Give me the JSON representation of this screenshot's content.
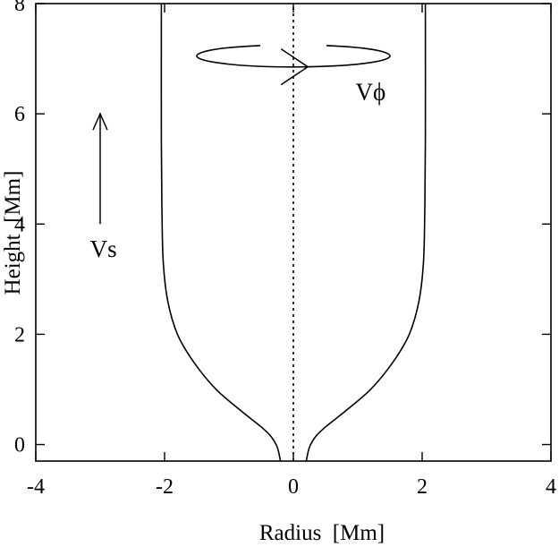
{
  "chart_data": {
    "type": "line",
    "xlabel": "Radius  [Mm]",
    "ylabel": "Height  [Mm]",
    "xlim": [
      -4,
      4
    ],
    "ylim": [
      -0.3,
      8
    ],
    "x_ticks": [
      "-4",
      "-2",
      "0",
      "2",
      "4"
    ],
    "y_ticks": [
      "0",
      "2",
      "4",
      "6",
      "8"
    ],
    "series": [
      {
        "style": "solid",
        "x": [
          0.2,
          0.25,
          0.35,
          0.5,
          0.8,
          1.2,
          1.55,
          1.8,
          1.95,
          2.02,
          2.04,
          2.05,
          2.05
        ],
        "y": [
          -0.3,
          -0.05,
          0.15,
          0.32,
          0.6,
          1.0,
          1.5,
          2.0,
          2.6,
          3.3,
          4.2,
          5.5,
          8.0
        ]
      },
      {
        "style": "solid",
        "x": [
          -0.2,
          -0.25,
          -0.35,
          -0.5,
          -0.8,
          -1.2,
          -1.55,
          -1.8,
          -1.95,
          -2.02,
          -2.04,
          -2.05,
          -2.05
        ],
        "y": [
          -0.3,
          -0.05,
          0.15,
          0.32,
          0.6,
          1.0,
          1.5,
          2.0,
          2.6,
          3.3,
          4.2,
          5.5,
          8.0
        ]
      },
      {
        "style": "dotted",
        "x": [
          0,
          0
        ],
        "y": [
          -0.3,
          8.0
        ]
      }
    ],
    "annotations": [
      {
        "label": "Vs",
        "kind": "arrow-up",
        "x": -3.0,
        "y_from": 4.0,
        "y_to": 6.0,
        "label_x": -2.95,
        "label_y": 3.4
      },
      {
        "label": "Vϕ",
        "kind": "rotation-ellipse",
        "cx": 0,
        "cy": 7.05,
        "rx": 1.5,
        "ry": 0.2,
        "label_x": 1.2,
        "label_y": 6.25
      }
    ]
  }
}
